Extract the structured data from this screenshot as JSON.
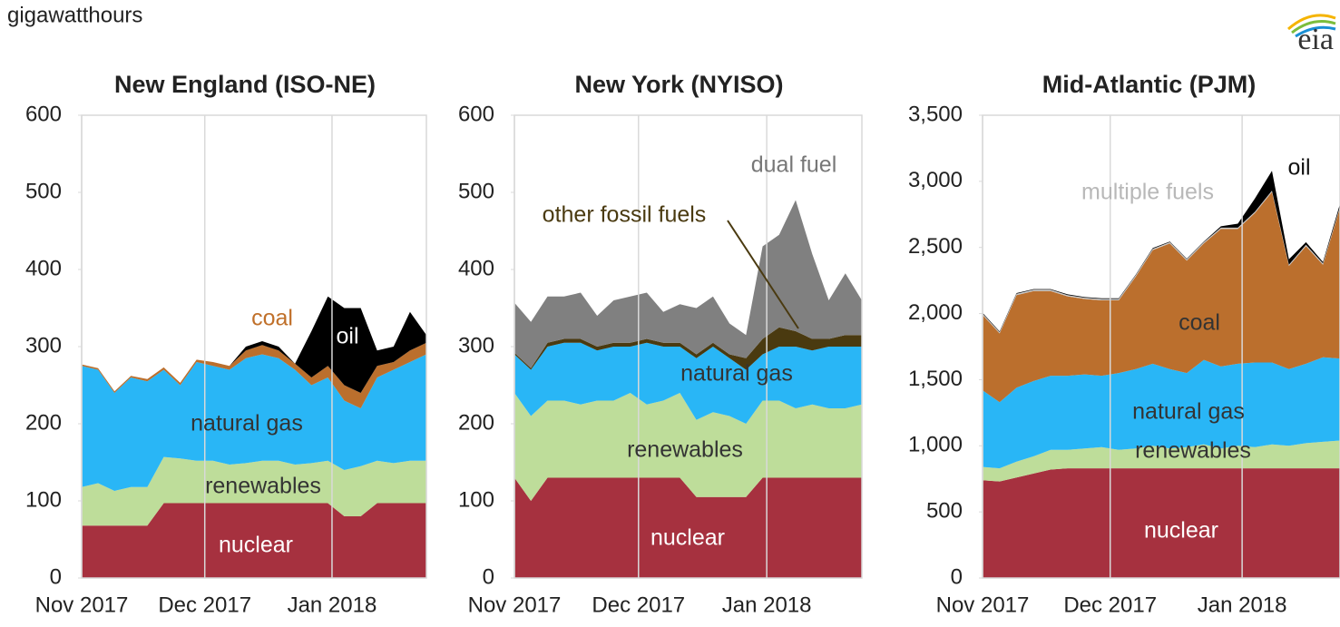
{
  "unit_label": "gigawatthours",
  "logo": "eia",
  "chart_data": [
    {
      "type": "stacked_area",
      "title": "New England (ISO-NE)",
      "x": [
        0,
        4,
        8,
        12,
        16,
        20,
        24,
        28,
        32,
        36,
        40,
        44,
        48,
        52,
        56,
        60,
        64,
        68,
        72,
        76,
        80,
        84
      ],
      "xlim": [
        0,
        84
      ],
      "xticks": [
        {
          "value": 0,
          "label": "Nov 2017"
        },
        {
          "value": 30,
          "label": "Dec 2017"
        },
        {
          "value": 61,
          "label": "Jan 2018"
        }
      ],
      "ylim": [
        0,
        600
      ],
      "yticks": [
        0,
        100,
        200,
        300,
        400,
        500,
        600
      ],
      "grid": true,
      "series": [
        {
          "name": "nuclear",
          "color": "#a6313f",
          "values": [
            68,
            68,
            68,
            68,
            68,
            97,
            97,
            97,
            97,
            97,
            97,
            97,
            97,
            97,
            97,
            97,
            80,
            80,
            97,
            97,
            97,
            97
          ]
        },
        {
          "name": "renewables",
          "color": "#bedd9a",
          "values": [
            50,
            55,
            45,
            50,
            50,
            60,
            58,
            55,
            55,
            50,
            52,
            55,
            55,
            50,
            52,
            55,
            60,
            65,
            55,
            52,
            55,
            55
          ]
        },
        {
          "name": "natural gas",
          "color": "#29b6f6",
          "values": [
            157,
            147,
            127,
            142,
            137,
            113,
            95,
            128,
            123,
            123,
            136,
            138,
            133,
            123,
            101,
            108,
            90,
            75,
            108,
            121,
            128,
            138
          ]
        },
        {
          "name": "coal",
          "color": "#bb6f2d",
          "values": [
            2,
            2,
            2,
            2,
            3,
            3,
            3,
            3,
            5,
            5,
            10,
            12,
            10,
            8,
            10,
            15,
            20,
            20,
            15,
            10,
            15,
            15
          ]
        },
        {
          "name": "oil",
          "color": "#000000",
          "values": [
            0,
            0,
            0,
            0,
            0,
            0,
            0,
            0,
            0,
            0,
            5,
            5,
            5,
            0,
            60,
            90,
            100,
            110,
            20,
            20,
            50,
            10
          ]
        }
      ]
    },
    {
      "type": "stacked_area",
      "title": "New York (NYISO)",
      "x": [
        0,
        4,
        8,
        12,
        16,
        20,
        24,
        28,
        32,
        36,
        40,
        44,
        48,
        52,
        56,
        60,
        64,
        68,
        72,
        76,
        80,
        84
      ],
      "xlim": [
        0,
        84
      ],
      "xticks": [
        {
          "value": 0,
          "label": "Nov 2017"
        },
        {
          "value": 30,
          "label": "Dec 2017"
        },
        {
          "value": 61,
          "label": "Jan 2018"
        }
      ],
      "ylim": [
        0,
        600
      ],
      "yticks": [
        0,
        100,
        200,
        300,
        400,
        500,
        600
      ],
      "grid": true,
      "series": [
        {
          "name": "nuclear",
          "color": "#a6313f",
          "values": [
            130,
            100,
            130,
            130,
            130,
            130,
            130,
            130,
            130,
            130,
            130,
            105,
            105,
            105,
            105,
            130,
            130,
            130,
            130,
            130,
            130,
            130
          ]
        },
        {
          "name": "renewables",
          "color": "#bedd9a",
          "values": [
            110,
            110,
            100,
            100,
            95,
            100,
            100,
            110,
            95,
            100,
            110,
            100,
            110,
            105,
            95,
            100,
            100,
            90,
            95,
            90,
            90,
            95
          ]
        },
        {
          "name": "natural gas",
          "color": "#29b6f6",
          "values": [
            50,
            60,
            70,
            75,
            80,
            65,
            70,
            60,
            80,
            70,
            60,
            80,
            85,
            75,
            70,
            60,
            70,
            80,
            70,
            80,
            80,
            75
          ]
        },
        {
          "name": "other fossil fuels",
          "color": "#4a3a10",
          "values": [
            2,
            2,
            5,
            5,
            5,
            5,
            5,
            5,
            5,
            5,
            5,
            5,
            5,
            5,
            15,
            20,
            25,
            20,
            15,
            10,
            15,
            15
          ]
        },
        {
          "name": "dual fuel",
          "color": "#808080",
          "values": [
            65,
            60,
            60,
            55,
            60,
            40,
            55,
            60,
            60,
            40,
            50,
            60,
            60,
            40,
            30,
            120,
            120,
            170,
            110,
            50,
            80,
            45
          ]
        }
      ]
    },
    {
      "type": "stacked_area",
      "title": "Mid-Atlantic (PJM)",
      "x": [
        0,
        4,
        8,
        12,
        16,
        20,
        24,
        28,
        32,
        36,
        40,
        44,
        48,
        52,
        56,
        60,
        64,
        68,
        72,
        76,
        80,
        84
      ],
      "xlim": [
        0,
        84
      ],
      "xticks": [
        {
          "value": 0,
          "label": "Nov 2017"
        },
        {
          "value": 30,
          "label": "Dec 2017"
        },
        {
          "value": 61,
          "label": "Jan 2018"
        }
      ],
      "ylim": [
        0,
        3500
      ],
      "yticks": [
        0,
        500,
        {
          "value": 1000,
          "label": "1,000"
        },
        {
          "value": 1500,
          "label": "1,500"
        },
        {
          "value": 2000,
          "label": "2,000"
        },
        {
          "value": 2500,
          "label": "2,500"
        },
        {
          "value": 3000,
          "label": "3,000"
        },
        {
          "value": 3500,
          "label": "3,500"
        }
      ],
      "grid": true,
      "series": [
        {
          "name": "nuclear",
          "color": "#a6313f",
          "values": [
            740,
            730,
            760,
            790,
            820,
            830,
            830,
            830,
            830,
            830,
            830,
            830,
            830,
            830,
            830,
            830,
            830,
            830,
            830,
            830,
            830,
            830
          ]
        },
        {
          "name": "renewables",
          "color": "#bedd9a",
          "values": [
            100,
            100,
            120,
            130,
            150,
            140,
            150,
            160,
            140,
            150,
            170,
            150,
            160,
            180,
            150,
            170,
            160,
            180,
            170,
            190,
            200,
            210
          ]
        },
        {
          "name": "natural gas",
          "color": "#29b6f6",
          "values": [
            580,
            500,
            560,
            570,
            560,
            560,
            560,
            540,
            580,
            600,
            620,
            600,
            560,
            640,
            620,
            620,
            640,
            620,
            580,
            600,
            640,
            620
          ]
        },
        {
          "name": "coal",
          "color": "#bb6f2d",
          "values": [
            570,
            520,
            700,
            680,
            640,
            600,
            570,
            570,
            550,
            700,
            860,
            950,
            850,
            880,
            1040,
            1020,
            1130,
            1290,
            780,
            890,
            700,
            1140
          ]
        },
        {
          "name": "multiple fuels",
          "color": "#c8c8c8",
          "values": [
            10,
            10,
            10,
            10,
            10,
            10,
            10,
            10,
            10,
            10,
            10,
            10,
            10,
            10,
            10,
            10,
            10,
            10,
            10,
            10,
            10,
            10
          ]
        },
        {
          "name": "oil",
          "color": "#000000",
          "values": [
            5,
            5,
            5,
            5,
            5,
            5,
            5,
            5,
            5,
            5,
            5,
            5,
            5,
            5,
            10,
            30,
            100,
            150,
            40,
            20,
            10,
            20
          ]
        }
      ]
    }
  ]
}
